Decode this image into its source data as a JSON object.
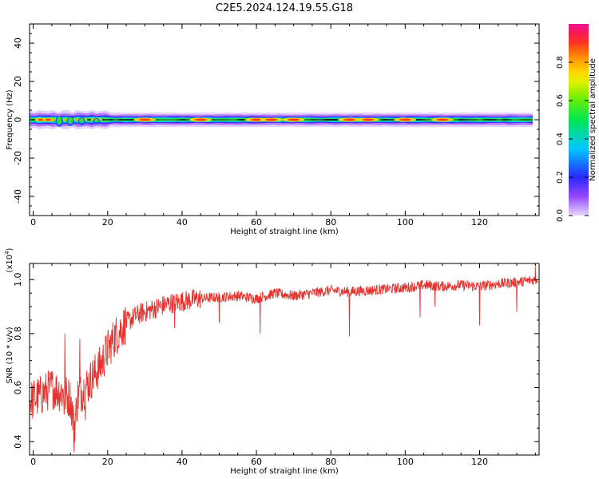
{
  "title": "C2E5.2024.124.19.55.G18",
  "chart_data": [
    {
      "type": "heatmap",
      "xlabel": "Height of straight line (km)",
      "ylabel": "Frequency (Hz)",
      "xlim": [
        -1,
        136
      ],
      "ylim": [
        -50,
        50
      ],
      "x_ticks": [
        0,
        20,
        40,
        60,
        80,
        100,
        120
      ],
      "y_ticks": [
        -40,
        -20,
        0,
        20,
        40
      ],
      "colorbar": {
        "label": "Normalized spectral amplitude",
        "range": [
          0,
          1
        ],
        "ticks": [
          "0.0",
          "0.2",
          "0.4",
          "0.6",
          "0.8"
        ]
      },
      "band": {
        "center_frequency_hz": 0,
        "x_range_km": [
          -1,
          135
        ],
        "hot_spots_km": [
          2,
          4,
          7,
          10,
          13,
          17,
          30,
          45,
          60,
          64,
          70,
          85,
          90,
          100,
          110
        ]
      }
    },
    {
      "type": "line",
      "xlabel": "Height of straight line (km)",
      "ylabel": "SNR (10 * v/v)",
      "scale_label": "(x10^4)",
      "xlim": [
        -1,
        136
      ],
      "ylim": [
        0.35,
        1.06
      ],
      "x_ticks": [
        0,
        20,
        40,
        60,
        80,
        100,
        120
      ],
      "y_ticks": [
        "0.4",
        "0.6",
        "0.8",
        "1.0"
      ],
      "series": [
        {
          "color": "#e8322e",
          "x": [
            -1,
            2,
            5,
            8,
            10,
            11,
            12,
            14,
            16,
            18,
            20,
            22,
            25,
            28,
            32,
            36,
            40,
            45,
            50,
            55,
            60,
            65,
            70,
            75,
            80,
            85,
            90,
            95,
            100,
            105,
            110,
            115,
            120,
            125,
            130,
            135
          ],
          "y": [
            0.55,
            0.57,
            0.6,
            0.58,
            0.56,
            0.45,
            0.57,
            0.6,
            0.64,
            0.68,
            0.74,
            0.79,
            0.84,
            0.87,
            0.89,
            0.91,
            0.92,
            0.93,
            0.935,
            0.94,
            0.93,
            0.95,
            0.94,
            0.95,
            0.96,
            0.955,
            0.96,
            0.965,
            0.97,
            0.98,
            0.975,
            0.98,
            0.975,
            0.985,
            0.99,
            1.0
          ]
        }
      ],
      "noise": {
        "amplitude_min": 0.02,
        "amplitude_max": 0.12,
        "downward_spikes": [
          [
            11,
            0.36
          ],
          [
            8.3,
            0.5
          ],
          [
            14,
            0.48
          ],
          [
            38,
            0.82
          ],
          [
            50,
            0.84
          ],
          [
            61,
            0.8
          ],
          [
            85,
            0.79
          ],
          [
            104,
            0.86
          ],
          [
            108,
            0.9
          ],
          [
            120,
            0.83
          ],
          [
            130,
            0.88
          ]
        ],
        "upward_spikes": [
          [
            8.5,
            0.8
          ],
          [
            12.5,
            0.78
          ],
          [
            135,
            1.05
          ]
        ]
      }
    }
  ]
}
